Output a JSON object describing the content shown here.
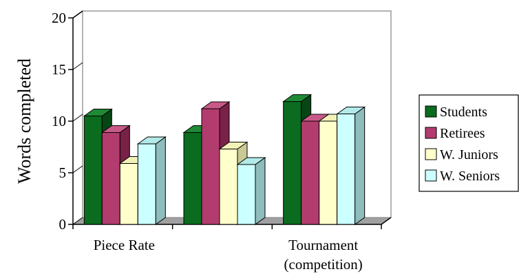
{
  "chart_data": {
    "type": "bar",
    "style": "3d-clustered-column",
    "title": "",
    "xlabel": "",
    "ylabel": "Words completed",
    "ylim": [
      0,
      20
    ],
    "yticks": [
      "0",
      "5",
      "10",
      "15",
      "20"
    ],
    "grid": false,
    "legend_position": "right",
    "categories": [
      {
        "line1": "Piece Rate",
        "line2": ""
      },
      {
        "line1": "",
        "line2": ""
      },
      {
        "line1": "Tournament",
        "line2": "(competition)"
      }
    ],
    "series": [
      {
        "name": "Students",
        "values": [
          10.5,
          8.9,
          11.9
        ],
        "color": "#0b6b1e",
        "side": "#064615",
        "top": "#1f8a35"
      },
      {
        "name": "Retirees",
        "values": [
          8.9,
          11.2,
          10.0
        ],
        "color": "#b33c6e",
        "side": "#7a2148",
        "top": "#c95a88"
      },
      {
        "name": "W. Juniors",
        "values": [
          5.9,
          7.3,
          10.0
        ],
        "color": "#ffffcc",
        "side": "#c9c996",
        "top": "#f2f2b8"
      },
      {
        "name": "W. Seniors",
        "values": [
          7.8,
          5.8,
          10.7
        ],
        "color": "#ccffff",
        "side": "#8fbcbc",
        "top": "#b3eaea"
      }
    ],
    "colors": {
      "floor": "#a0a0a0",
      "wall_border": "#9a9a9a",
      "axis": "#000000",
      "text": "#000000"
    }
  }
}
